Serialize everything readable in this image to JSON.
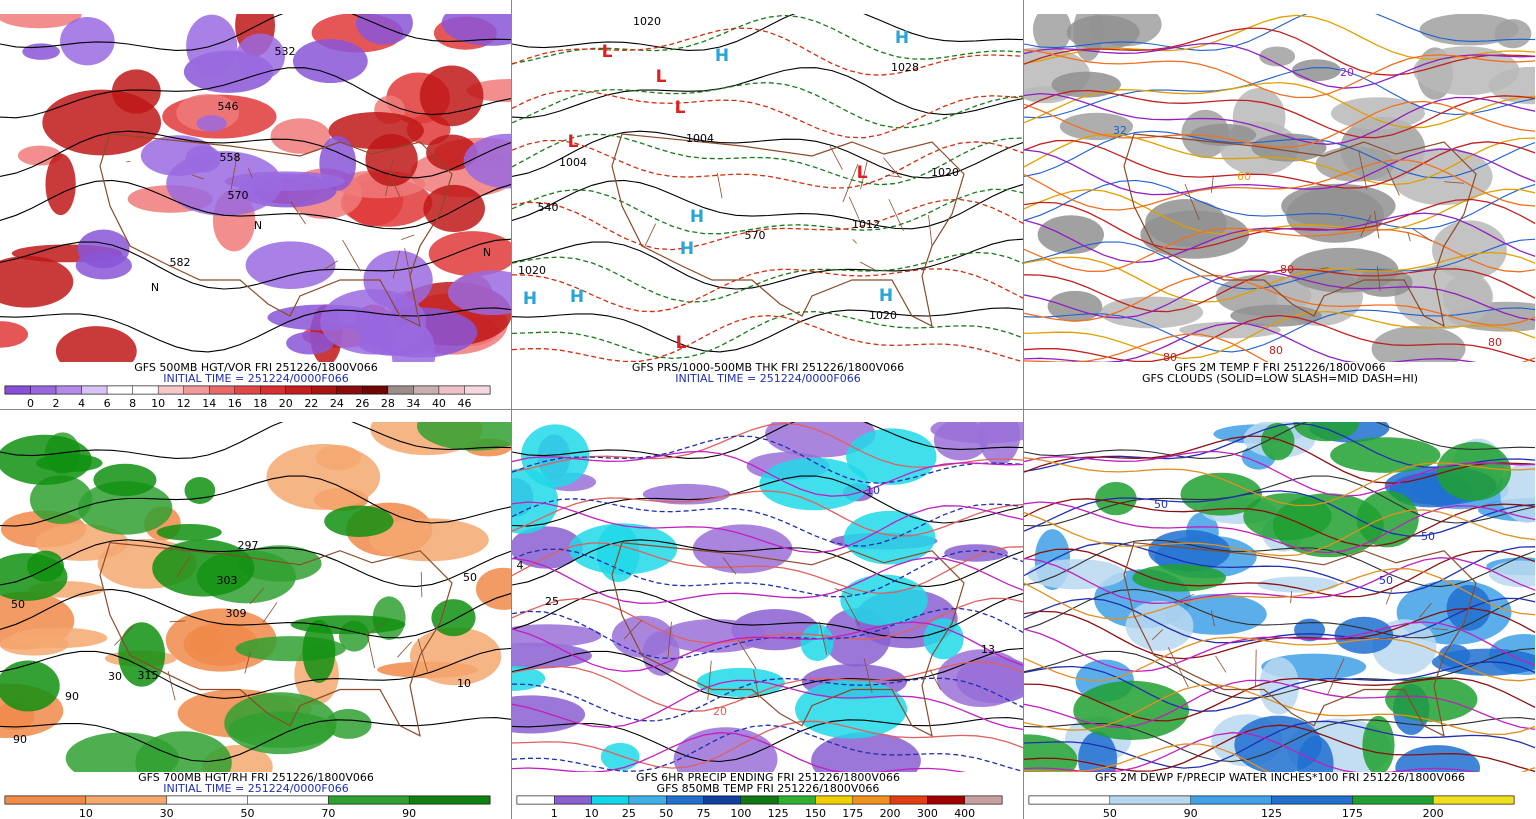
{
  "panels": [
    {
      "captions": [
        {
          "text": "GFS 500MB HGT/VOR FRI 251226/1800V066",
          "color": "#000000"
        },
        {
          "text": "INITIAL TIME = 251224/0000F066",
          "color": "#1f2fb0"
        }
      ],
      "colorbar": {
        "labels": [
          "0",
          "2",
          "4",
          "6",
          "8",
          "10",
          "12",
          "14",
          "16",
          "18",
          "20",
          "22",
          "24",
          "26",
          "28",
          "34",
          "40",
          "46"
        ],
        "colors": [
          "#8a4fd8",
          "#9a66e0",
          "#b489ea",
          "#d8c4f4",
          "#ffffff",
          "#ffffff",
          "#f6c8c8",
          "#f09a9a",
          "#e86a6a",
          "#e04848",
          "#d83030",
          "#c41e1e",
          "#a81414",
          "#8c0c0c",
          "#700606",
          "#9c8c8c",
          "#c8b0b0",
          "#f0c0c8",
          "#f8d8e0"
        ]
      },
      "labels": [
        {
          "text": "558",
          "color": "#000000"
        },
        {
          "text": "546",
          "color": "#000000"
        },
        {
          "text": "532",
          "color": "#000000"
        },
        {
          "text": "570",
          "color": "#000000"
        },
        {
          "text": "582",
          "color": "#000000"
        },
        {
          "text": "N",
          "color": "#000000"
        },
        {
          "text": "N",
          "color": "#000000"
        },
        {
          "text": "N",
          "color": "#000000"
        }
      ]
    },
    {
      "captions": [
        {
          "text": "GFS PRS/1000-500MB THK FRI 251226/1800V066",
          "color": "#000000"
        },
        {
          "text": "INITIAL TIME = 251224/0000F066",
          "color": "#1f2fb0"
        }
      ],
      "labels": [
        {
          "text": "H",
          "color": "#2aa5d8"
        },
        {
          "text": "H",
          "color": "#2aa5d8"
        },
        {
          "text": "H",
          "color": "#2aa5d8"
        },
        {
          "text": "H",
          "color": "#2aa5d8"
        },
        {
          "text": "H",
          "color": "#2aa5d8"
        },
        {
          "text": "H",
          "color": "#2aa5d8"
        },
        {
          "text": "H",
          "color": "#2aa5d8"
        },
        {
          "text": "L",
          "color": "#e02020"
        },
        {
          "text": "L",
          "color": "#e02020"
        },
        {
          "text": "L",
          "color": "#e02020"
        },
        {
          "text": "L",
          "color": "#e02020"
        },
        {
          "text": "L",
          "color": "#e02020"
        },
        {
          "text": "L",
          "color": "#e02020"
        },
        {
          "text": "1020",
          "color": "#000000"
        },
        {
          "text": "1004",
          "color": "#000000"
        },
        {
          "text": "1004",
          "color": "#000000"
        },
        {
          "text": "1028",
          "color": "#000000"
        },
        {
          "text": "1020",
          "color": "#000000"
        },
        {
          "text": "1012",
          "color": "#000000"
        },
        {
          "text": "1020",
          "color": "#000000"
        },
        {
          "text": "1020",
          "color": "#000000"
        },
        {
          "text": "570",
          "color": "#000000"
        },
        {
          "text": "540",
          "color": "#000000"
        }
      ]
    },
    {
      "captions": [
        {
          "text": "GFS 2M TEMP F FRI 251226/1800V066",
          "color": "#000000"
        },
        {
          "text": "GFS CLOUDS (SOLID=LOW SLASH=MID DASH=HI)",
          "color": "#000000"
        }
      ],
      "labels": [
        {
          "text": "32",
          "color": "#1f5fd0"
        },
        {
          "text": "20",
          "color": "#9020c0"
        },
        {
          "text": "60",
          "color": "#e0a000"
        },
        {
          "text": "80",
          "color": "#c02020"
        },
        {
          "text": "80",
          "color": "#c02020"
        },
        {
          "text": "80",
          "color": "#c02020"
        },
        {
          "text": "80",
          "color": "#c02020"
        }
      ]
    },
    {
      "captions": [
        {
          "text": "GFS 700MB HGT/RH FRI 251226/1800V066",
          "color": "#000000"
        },
        {
          "text": "INITIAL TIME = 251224/0000F066",
          "color": "#1f2fb0"
        }
      ],
      "colorbar": {
        "labels": [
          "10",
          "30",
          "50",
          "70",
          "90"
        ],
        "colors": [
          "#f08a4a",
          "#f4a870",
          "#ffffff",
          "#ffffff",
          "#30a030",
          "#108010"
        ]
      },
      "labels": [
        {
          "text": "50",
          "color": "#000000"
        },
        {
          "text": "303",
          "color": "#000000"
        },
        {
          "text": "309",
          "color": "#000000"
        },
        {
          "text": "315",
          "color": "#000000"
        },
        {
          "text": "297",
          "color": "#000000"
        },
        {
          "text": "50",
          "color": "#000000"
        },
        {
          "text": "10",
          "color": "#000000"
        },
        {
          "text": "30",
          "color": "#000000"
        },
        {
          "text": "90",
          "color": "#000000"
        },
        {
          "text": "90",
          "color": "#000000"
        }
      ]
    },
    {
      "captions": [
        {
          "text": "GFS 6HR PRECIP ENDING FRI 251226/1800V066",
          "color": "#000000"
        },
        {
          "text": "GFS 850MB TEMP FRI 251226/1800V066",
          "color": "#000000"
        }
      ],
      "colorbar": {
        "labels": [
          "1",
          "10",
          "25",
          "50",
          "75",
          "100",
          "125",
          "150",
          "175",
          "200",
          "300",
          "400"
        ],
        "colors": [
          "#ffffff",
          "#8a5fd0",
          "#10d8e8",
          "#40b0e8",
          "#2070d0",
          "#1040a0",
          "#107810",
          "#30b030",
          "#f0d000",
          "#f09020",
          "#e04010",
          "#a00000",
          "#c8a0a0"
        ]
      },
      "labels": [
        {
          "text": "25",
          "color": "#000000"
        },
        {
          "text": "4",
          "color": "#000000"
        },
        {
          "text": "13",
          "color": "#000000"
        },
        {
          "text": "10",
          "color": "#1f2fb0"
        },
        {
          "text": "20",
          "color": "#e06060"
        }
      ]
    },
    {
      "captions": [
        {
          "text": "GFS 2M DEWP F/PRECIP WATER INCHES*100 FRI 251226/1800V066",
          "color": "#000000"
        }
      ],
      "colorbar": {
        "labels": [
          "50",
          "90",
          "125",
          "175",
          "200"
        ],
        "colors": [
          "#ffffff",
          "#b8d8f0",
          "#40a0e8",
          "#2070d0",
          "#20a030",
          "#f0e020"
        ]
      },
      "labels": [
        {
          "text": "50",
          "color": "#1f2fb0"
        },
        {
          "text": "50",
          "color": "#1f2fb0"
        },
        {
          "text": "50",
          "color": "#1f2fb0"
        }
      ]
    }
  ]
}
